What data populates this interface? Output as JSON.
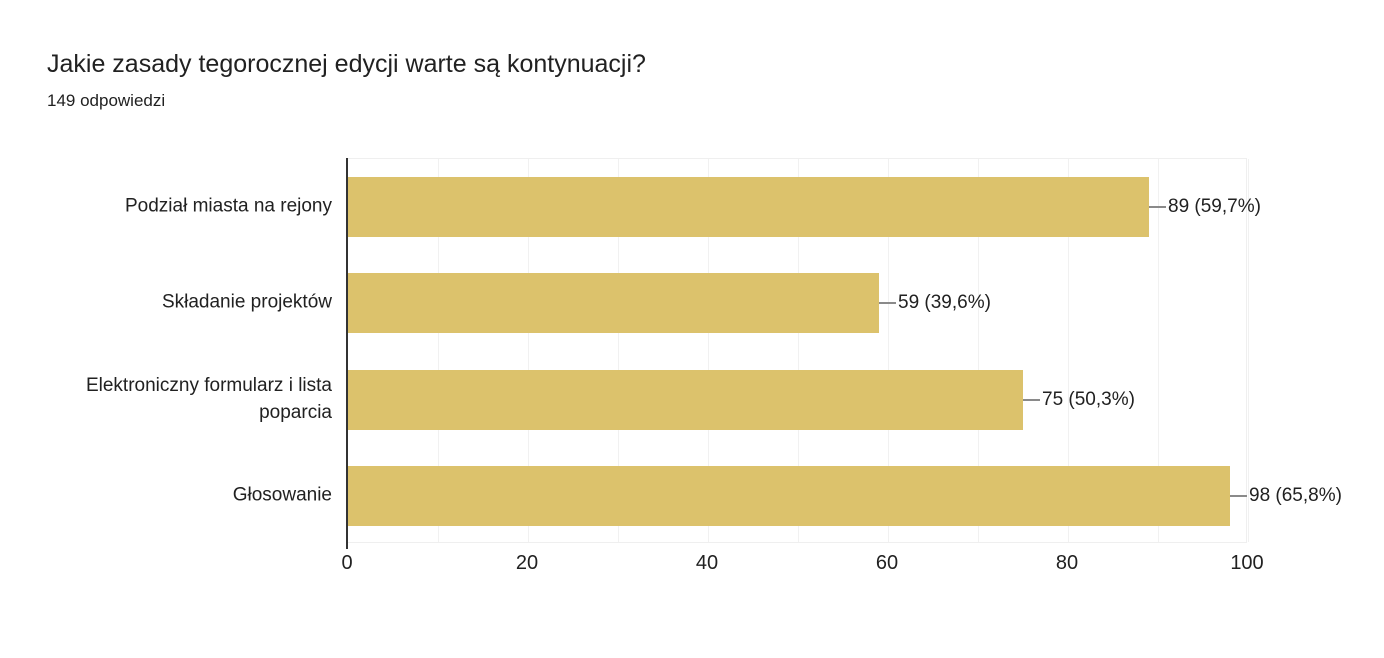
{
  "page": {
    "title": "Jakie zasady tegorocznej edycji warte są kontynuacji?",
    "subtitle": "149 odpowiedzi"
  },
  "chart_data": {
    "type": "bar",
    "orientation": "horizontal",
    "title": "Jakie zasady tegorocznej edycji warte są kontynuacji?",
    "subtitle": "149 odpowiedzi",
    "categories": [
      "Podział miasta na rejony",
      "Składanie projektów",
      "Elektroniczny formularz i lista poparcia",
      "Głosowanie"
    ],
    "values": [
      89,
      59,
      75,
      98
    ],
    "value_labels": [
      "89 (59,7%)",
      "59 (39,6%)",
      "75 (50,3%)",
      "98 (65,8%)"
    ],
    "percentages": [
      59.7,
      39.6,
      50.3,
      65.8
    ],
    "xlabel": "",
    "ylabel": "",
    "xlim": [
      0,
      100
    ],
    "x_ticks": [
      0,
      20,
      40,
      60,
      80,
      100
    ],
    "gridline_step": 10,
    "grid": true,
    "legend": false
  },
  "colors": {
    "background": "#ffffff",
    "bar": "#dcc26c",
    "axis": "#333333",
    "gridline": "#f1f1f1",
    "plot_border": "#efefef",
    "connector": "#8a8a8a",
    "text": "#212121"
  }
}
